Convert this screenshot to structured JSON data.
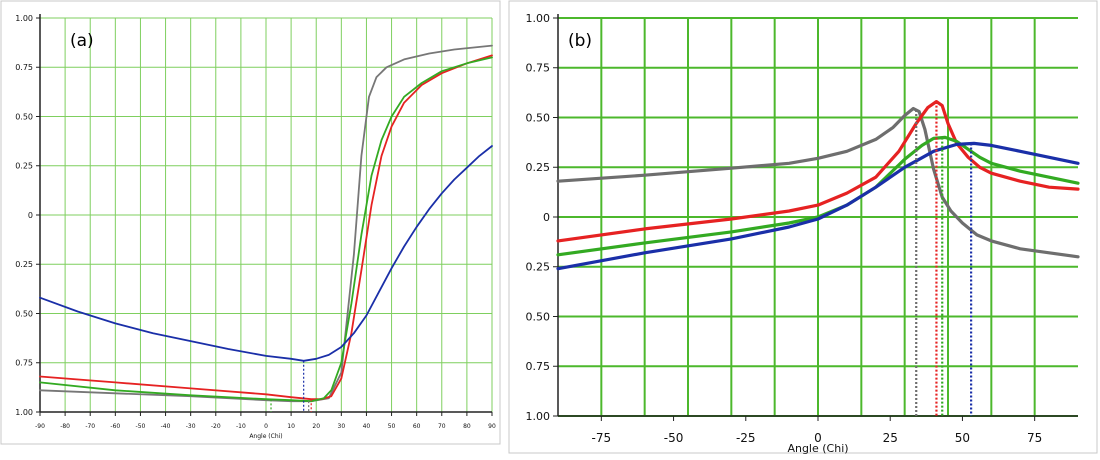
{
  "chart_data": [
    {
      "type": "line",
      "panel_label": "(a)",
      "xlabel": "Angle (Chi)",
      "xlim": [
        -90,
        90
      ],
      "ylim": [
        -1,
        1
      ],
      "x_ticks": [
        -90,
        -80,
        -70,
        -60,
        -50,
        -40,
        -30,
        -20,
        -10,
        0,
        10,
        20,
        30,
        40,
        50,
        60,
        70,
        80,
        90
      ],
      "x_tick_labels": [
        "-90",
        "-80",
        "-70",
        "-60",
        "-50",
        "-40",
        "-30",
        "-20",
        "-10",
        "0",
        "10",
        "20",
        "30",
        "40",
        "50",
        "60",
        "70",
        "80",
        "90"
      ],
      "y_ticks": [
        1,
        0.75,
        0.5,
        0.25,
        0,
        -0.25,
        -0.5,
        -0.75,
        -1
      ],
      "y_tick_labels": [
        "1.00",
        "0.75",
        "0.50",
        "0.25",
        "0",
        "0.25",
        "0.50",
        "0.75",
        "1.00"
      ],
      "series": [
        {
          "name": "gray",
          "color": "#777777",
          "x": [
            -90,
            -60,
            -30,
            0,
            10,
            18,
            25,
            30,
            35,
            38,
            41,
            44,
            48,
            55,
            65,
            75,
            90
          ],
          "y": [
            -0.89,
            -0.905,
            -0.92,
            -0.94,
            -0.945,
            -0.945,
            -0.93,
            -0.8,
            -0.2,
            0.3,
            0.6,
            0.7,
            0.75,
            0.79,
            0.82,
            0.84,
            0.86
          ]
        },
        {
          "name": "red",
          "color": "#e62222",
          "x": [
            -90,
            -60,
            -30,
            0,
            10,
            18,
            22,
            26,
            30,
            34,
            38,
            42,
            46,
            50,
            55,
            62,
            70,
            80,
            90
          ],
          "y": [
            -0.82,
            -0.85,
            -0.88,
            -0.91,
            -0.925,
            -0.935,
            -0.935,
            -0.92,
            -0.83,
            -0.6,
            -0.28,
            0.05,
            0.3,
            0.45,
            0.57,
            0.66,
            0.72,
            0.77,
            0.81
          ]
        },
        {
          "name": "green",
          "color": "#33aa22",
          "x": [
            -90,
            -60,
            -30,
            0,
            10,
            18,
            23,
            26,
            30,
            34,
            38,
            42,
            46,
            50,
            55,
            62,
            70,
            80,
            90
          ],
          "y": [
            -0.85,
            -0.89,
            -0.915,
            -0.935,
            -0.94,
            -0.945,
            -0.93,
            -0.89,
            -0.75,
            -0.45,
            -0.1,
            0.2,
            0.38,
            0.5,
            0.6,
            0.67,
            0.73,
            0.77,
            0.8
          ]
        },
        {
          "name": "blue",
          "color": "#1a2fa8",
          "x": [
            -90,
            -75,
            -60,
            -45,
            -30,
            -15,
            0,
            10,
            15,
            20,
            25,
            30,
            35,
            40,
            45,
            50,
            55,
            60,
            65,
            70,
            75,
            80,
            85,
            90
          ],
          "y": [
            -0.42,
            -0.49,
            -0.55,
            -0.6,
            -0.64,
            -0.68,
            -0.715,
            -0.73,
            -0.74,
            -0.73,
            -0.71,
            -0.67,
            -0.6,
            -0.51,
            -0.39,
            -0.27,
            -0.16,
            -0.06,
            0.03,
            0.11,
            0.18,
            0.24,
            0.3,
            0.35
          ]
        }
      ],
      "markers": [
        {
          "x": 15,
          "color": "#1a2fa8",
          "to": "blue"
        },
        {
          "x": 18,
          "color": "#e62222",
          "to": "red"
        },
        {
          "x": 17,
          "color": "#777777",
          "to": "gray"
        },
        {
          "x": 2,
          "color": "#33aa22",
          "to": "green"
        }
      ]
    },
    {
      "type": "line",
      "panel_label": "(b)",
      "xlabel": "Angle (Chi)",
      "xlim": [
        -90,
        90
      ],
      "ylim": [
        -1,
        1
      ],
      "x_ticks": [
        -75,
        -50,
        -25,
        0,
        25,
        50,
        75
      ],
      "x_tick_labels": [
        "-75",
        "-50",
        "-25",
        "0",
        "25",
        "50",
        "75"
      ],
      "y_ticks": [
        1,
        0.75,
        0.5,
        0.25,
        0,
        -0.25,
        -0.5,
        -0.75,
        -1
      ],
      "y_tick_labels": [
        "1.00",
        "0.75",
        "0.50",
        "0.25",
        "0",
        "0.25",
        "0.50",
        "0.75",
        "1.00"
      ],
      "series": [
        {
          "name": "gray",
          "color": "#6e6e6e",
          "x": [
            -90,
            -60,
            -30,
            -10,
            0,
            10,
            20,
            26,
            30,
            33,
            35,
            37,
            40,
            43,
            46,
            50,
            55,
            60,
            70,
            80,
            90
          ],
          "y": [
            0.18,
            0.21,
            0.245,
            0.27,
            0.295,
            0.33,
            0.39,
            0.45,
            0.51,
            0.545,
            0.53,
            0.44,
            0.24,
            0.1,
            0.03,
            -0.03,
            -0.09,
            -0.12,
            -0.16,
            -0.18,
            -0.2
          ]
        },
        {
          "name": "red",
          "color": "#e62222",
          "x": [
            -90,
            -60,
            -30,
            -10,
            0,
            10,
            20,
            28,
            34,
            38,
            41,
            43,
            45,
            48,
            52,
            56,
            60,
            70,
            80,
            90
          ],
          "y": [
            -0.12,
            -0.06,
            -0.01,
            0.03,
            0.06,
            0.12,
            0.2,
            0.33,
            0.47,
            0.55,
            0.58,
            0.56,
            0.47,
            0.37,
            0.3,
            0.25,
            0.22,
            0.18,
            0.15,
            0.14
          ]
        },
        {
          "name": "green",
          "color": "#33aa22",
          "x": [
            -90,
            -60,
            -30,
            -10,
            0,
            10,
            20,
            30,
            36,
            40,
            44,
            48,
            52,
            56,
            60,
            70,
            80,
            90
          ],
          "y": [
            -0.19,
            -0.13,
            -0.075,
            -0.03,
            0.0,
            0.06,
            0.15,
            0.29,
            0.36,
            0.395,
            0.4,
            0.38,
            0.34,
            0.3,
            0.27,
            0.23,
            0.2,
            0.17
          ]
        },
        {
          "name": "blue",
          "color": "#1a2fa8",
          "x": [
            -90,
            -60,
            -30,
            -10,
            0,
            10,
            20,
            30,
            40,
            48,
            54,
            60,
            70,
            80,
            90
          ],
          "y": [
            -0.26,
            -0.18,
            -0.11,
            -0.05,
            -0.01,
            0.06,
            0.15,
            0.25,
            0.33,
            0.365,
            0.37,
            0.36,
            0.33,
            0.3,
            0.27
          ]
        }
      ],
      "markers": [
        {
          "x": 34,
          "color": "#6e6e6e",
          "to": "gray"
        },
        {
          "x": 41,
          "color": "#e62222",
          "to": "red"
        },
        {
          "x": 43,
          "color": "#33aa22",
          "to": "green"
        },
        {
          "x": 53,
          "color": "#1a2fa8",
          "to": "blue"
        }
      ]
    }
  ]
}
